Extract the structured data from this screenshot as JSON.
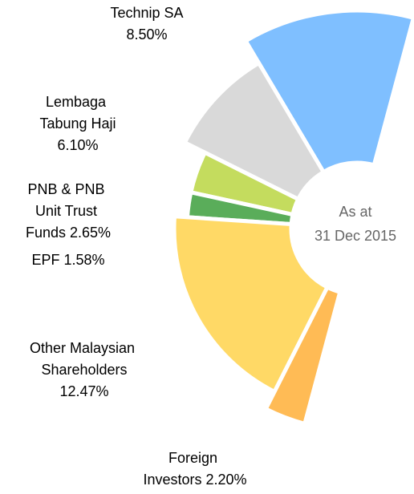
{
  "chart_data": {
    "type": "radial-bar",
    "categories": [
      "Technip SA",
      "Lembaga Tabung Haji",
      "PNB & PNB Unit Trust Funds",
      "EPF",
      "Other Malaysian Shareholders",
      "Foreign Investors"
    ],
    "values": [
      8.5,
      6.1,
      2.65,
      1.58,
      12.47,
      2.2
    ],
    "value_labels": [
      "8.50%",
      "6.10%",
      "2.65%",
      "1.58%",
      "12.47%",
      "2.20%"
    ],
    "colors": [
      "#7fbfff",
      "#d9d9d9",
      "#c4dc5e",
      "#5aad5a",
      "#ffd966",
      "#ffbb55"
    ],
    "annotation": [
      "As at",
      "31 Dec 2015"
    ]
  }
}
